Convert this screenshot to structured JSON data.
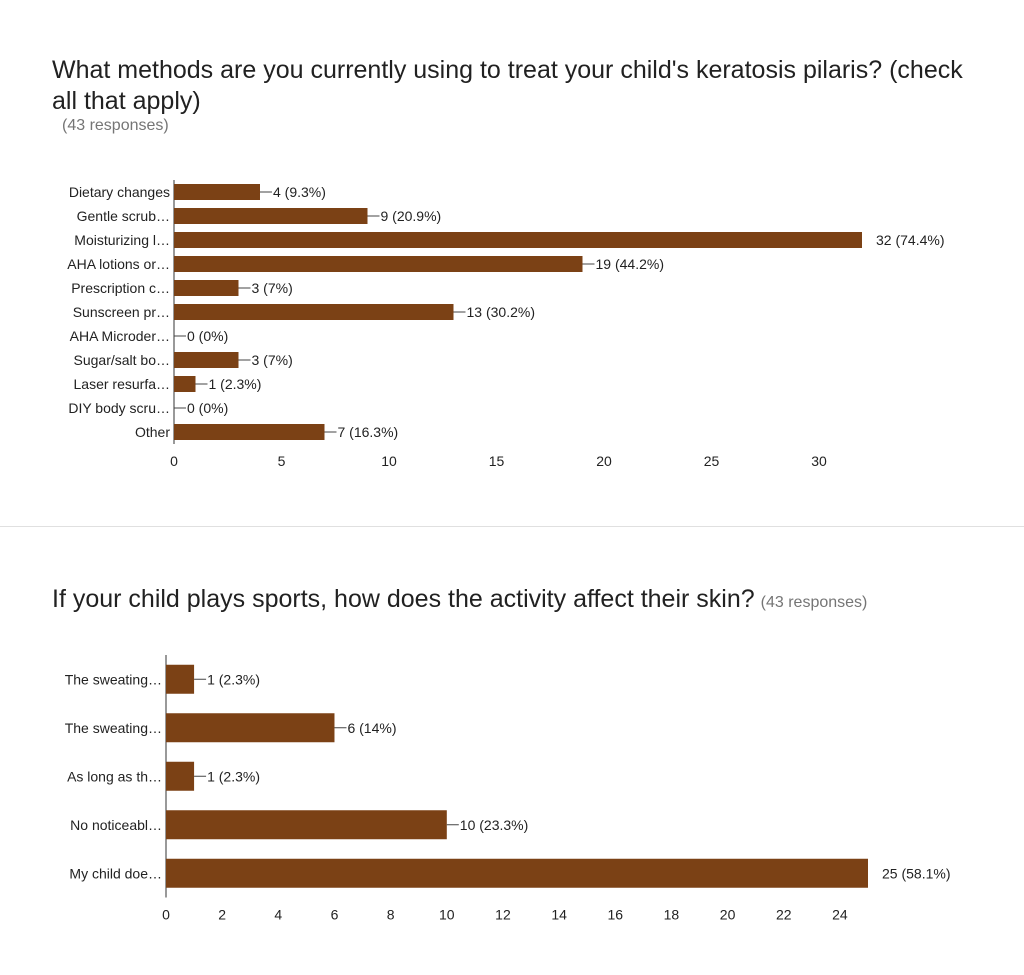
{
  "questions": [
    {
      "title": "What methods are you currently using to treat your child's keratosis pilaris? (check all that apply)",
      "responses": "(43 responses)"
    },
    {
      "title": "If your child plays sports, how does the activity affect their skin?",
      "responses": "(43 responses)"
    }
  ],
  "chart_data": [
    {
      "type": "bar",
      "orientation": "horizontal",
      "title": "What methods are you currently using to treat your child's keratosis pilaris? (check all that apply)",
      "categories": [
        "Dietary changes",
        "Gentle scrub…",
        "Moisturizing l…",
        "AHA lotions or…",
        "Prescription c…",
        "Sunscreen pr…",
        "AHA Microder…",
        "Sugar/salt bo…",
        "Laser resurfa…",
        "DIY body scru…",
        "Other"
      ],
      "values": [
        4,
        9,
        32,
        19,
        3,
        13,
        0,
        3,
        1,
        0,
        7
      ],
      "data_labels": [
        "4 (9.3%)",
        "9 (20.9%)",
        "32 (74.4%)",
        "19 (44.2%)",
        "3 (7%)",
        "13 (30.2%)",
        "0 (0%)",
        "3 (7%)",
        "1 (2.3%)",
        "0 (0%)",
        "7 (16.3%)"
      ],
      "xticks": [
        0,
        5,
        10,
        15,
        20,
        25,
        30
      ],
      "xlim": [
        0,
        32
      ],
      "color": "#7b4115",
      "grid": false
    },
    {
      "type": "bar",
      "orientation": "horizontal",
      "title": "If your child plays sports, how does the activity affect their skin?",
      "categories": [
        "The sweating…",
        "The sweating…",
        "As long as th…",
        "No noticeabl…",
        "My child doe…"
      ],
      "values": [
        1,
        6,
        1,
        10,
        25
      ],
      "data_labels": [
        "1 (2.3%)",
        "6 (14%)",
        "1 (2.3%)",
        "10 (23.3%)",
        "25 (58.1%)"
      ],
      "xticks": [
        0,
        2,
        4,
        6,
        8,
        10,
        12,
        14,
        16,
        18,
        20,
        22,
        24
      ],
      "xlim": [
        0,
        25
      ],
      "color": "#7b4115",
      "grid": false
    }
  ]
}
